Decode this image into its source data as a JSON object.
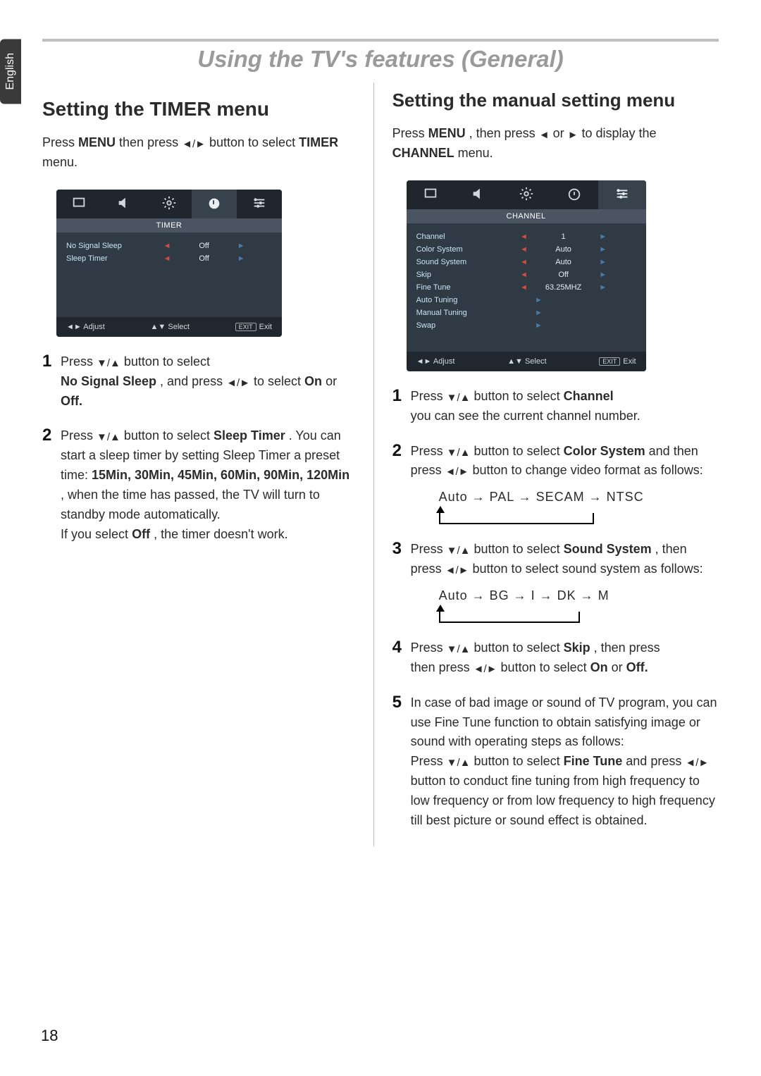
{
  "language_tab": "English",
  "chapter_title": "Using the TV's features (General)",
  "page_number": "18",
  "left": {
    "section_title": "Setting the TIMER menu",
    "intro_pre": "Press ",
    "intro_menu": "MENU",
    "intro_mid": " then press ",
    "intro_post": " button to select ",
    "intro_timer": "TIMER",
    "intro_end": " menu.",
    "osd": {
      "title": "TIMER",
      "rows": [
        {
          "label": "No Signal Sleep",
          "left_arrow": "◄",
          "value": "Off",
          "right_arrow": "►"
        },
        {
          "label": "Sleep Timer",
          "left_arrow": "◄",
          "value": "Off",
          "right_arrow": "►"
        }
      ],
      "footer": {
        "adjust": "Adjust",
        "select": "Select",
        "exit_badge": "EXIT",
        "exit": "Exit"
      },
      "tab_active_index": 3
    },
    "step1_a": "Press ",
    "step1_b": " button to select",
    "step1_bold": "No Signal Sleep",
    "step1_c": ", and press ",
    "step1_d": " to select ",
    "step1_opts": "On",
    "step1_or": " or ",
    "step1_off": "Off.",
    "step2_a": "Press ",
    "step2_b": " button to select ",
    "step2_bold": "Sleep Timer",
    "step2_c": ". You can start a sleep timer by setting Sleep Timer a preset time: ",
    "step2_times": "15Min, 30Min, 45Min, 60Min, 90Min, 120Min",
    "step2_d": ", when the time has passed, the TV will turn to standby mode automatically.",
    "step2_e": "If you select ",
    "step2_off": "Off",
    "step2_f": ", the timer doesn't work."
  },
  "right": {
    "section_title": "Setting the manual setting menu",
    "intro_pre": "Press ",
    "intro_menu": "MENU",
    "intro_mid": ", then press ",
    "intro_or": " or ",
    "intro_post": " to display the ",
    "intro_channel": "CHANNEL",
    "intro_end": " menu.",
    "osd": {
      "title": "CHANNEL",
      "rows": [
        {
          "label": "Channel",
          "left_arrow": "◄",
          "value": "1",
          "right_arrow": "►"
        },
        {
          "label": "Color System",
          "left_arrow": "◄",
          "value": "Auto",
          "right_arrow": "►"
        },
        {
          "label": "Sound System",
          "left_arrow": "◄",
          "value": "Auto",
          "right_arrow": "►"
        },
        {
          "label": "Skip",
          "left_arrow": "◄",
          "value": "Off",
          "right_arrow": "►"
        },
        {
          "label": "Fine Tune",
          "left_arrow": "◄",
          "value": "63.25MHZ",
          "right_arrow": "►"
        },
        {
          "label": "Auto Tuning",
          "left_arrow": "",
          "value": "",
          "right_arrow": "►",
          "right_only": true
        },
        {
          "label": "Manual Tuning",
          "left_arrow": "",
          "value": "",
          "right_arrow": "►",
          "right_only": true
        },
        {
          "label": "Swap",
          "left_arrow": "",
          "value": "",
          "right_arrow": "►",
          "right_only": true
        }
      ],
      "footer": {
        "adjust": "Adjust",
        "select": "Select",
        "exit_badge": "EXIT",
        "exit": "Exit"
      },
      "tab_active_index": 3
    },
    "step1_a": "Press ",
    "step1_b": " button to select ",
    "step1_bold": "Channel",
    "step1_c": " you can see the current channel number.",
    "step2_a": "Press ",
    "step2_b": " button to select ",
    "step2_bold": "Color System",
    "step2_c": " and then press ",
    "step2_d": " button to change video format as follows:",
    "seq1": "Auto → PAL → SECAM → NTSC",
    "step3_a": "Press ",
    "step3_b": " button to select ",
    "step3_bold": "Sound System",
    "step3_c": ", then press ",
    "step3_d": " button to select sound system as follows:",
    "seq2": "Auto → BG → I → DK → M",
    "step4_a": "Press ",
    "step4_b": " button to select ",
    "step4_bold": "Skip",
    "step4_c": ", then press ",
    "step4_d": " button to select ",
    "step4_on": "On",
    "step4_or": " or ",
    "step4_off": "Off.",
    "step5_a": "In case of bad image or sound of TV program, you can use Fine Tune function to obtain satisfying image or sound with operating steps as follows:",
    "step5_b": "Press ",
    "step5_c": " button to select ",
    "step5_bold": "Fine Tune",
    "step5_d": " and press ",
    "step5_e": " button to conduct fine tuning from high frequency to low frequency or from low frequency to high frequency till best picture or sound effect is obtained."
  }
}
